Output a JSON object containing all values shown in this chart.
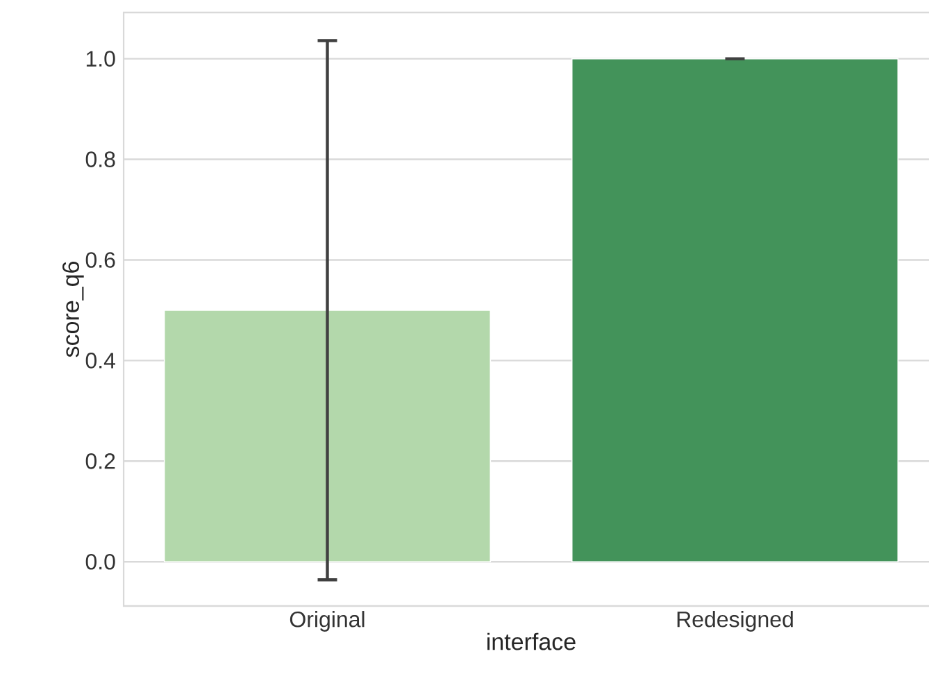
{
  "chart_data": {
    "type": "bar",
    "xlabel": "interface",
    "ylabel": "score_q6",
    "categories": [
      "Original",
      "Redesigned"
    ],
    "values": [
      0.5,
      1.0
    ],
    "colors": [
      "#b3d8ab",
      "#43935a"
    ],
    "errors": [
      0.536,
      0
    ],
    "ylim": [
      -0.088,
      1.092
    ],
    "yticks": [
      {
        "value": 0,
        "label": "0.0"
      },
      0.2,
      0.4,
      0.6,
      0.8,
      {
        "value": 1,
        "label": "1.0"
      }
    ],
    "grid": "y"
  }
}
